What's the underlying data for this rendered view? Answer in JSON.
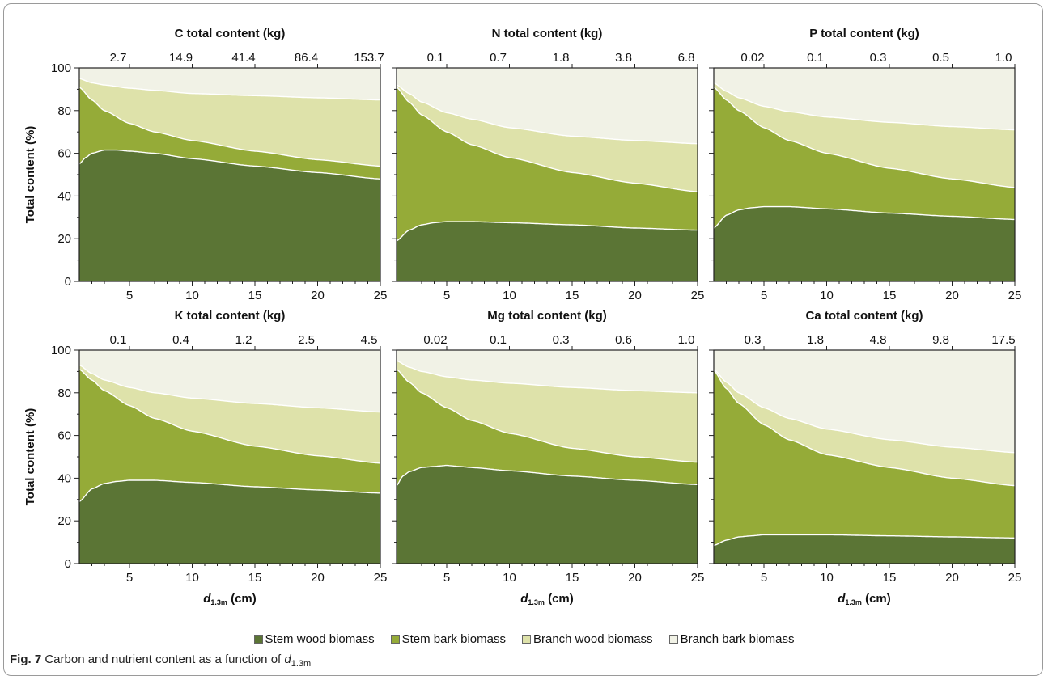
{
  "colors": {
    "stem_wood": "#5b7535",
    "stem_bark": "#95ab38",
    "branch_wood": "#dee2aa",
    "branch_bark": "#f1f2e6"
  },
  "y_axis_label": "Total content (%)",
  "x_axis_label_var": "d",
  "x_axis_label_sub": "1.3m",
  "x_axis_label_unit": " (cm)",
  "legend": {
    "stem_wood": "Stem wood biomass",
    "stem_bark": "Stem bark biomass",
    "branch_wood": "Branch wood biomass",
    "branch_bark": "Branch bark biomass"
  },
  "caption": {
    "label": "Fig. 7",
    "text": " Carbon and nutrient content as a function of ",
    "var": "d",
    "sub": "1.3m"
  },
  "chart_data": [
    {
      "type": "area",
      "title": "C total content (kg)",
      "xlabel": "d1.3m (cm)",
      "ylabel": "Total content (%)",
      "xlim": [
        1,
        25
      ],
      "ylim": [
        0,
        100
      ],
      "x_ticks": [
        5,
        10,
        15,
        20,
        25
      ],
      "y_ticks": [
        0,
        20,
        40,
        60,
        80,
        100
      ],
      "top_ticks": [
        "2.7",
        "14.9",
        "41.4",
        "86.4",
        "153.7"
      ],
      "stacking": "cumulative_boundaries",
      "series": [
        {
          "name": "Stem wood biomass",
          "x": [
            1,
            1.5,
            2,
            3,
            4,
            5,
            7,
            10,
            15,
            20,
            25
          ],
          "y": [
            55,
            58,
            60,
            61.5,
            61.5,
            61,
            60,
            57.5,
            54,
            51,
            48
          ]
        },
        {
          "name": "Stem bark biomass",
          "x": [
            1,
            2,
            3,
            5,
            7,
            10,
            15,
            20,
            25
          ],
          "y": [
            91,
            85,
            80,
            74,
            70,
            66,
            61,
            57,
            54
          ]
        },
        {
          "name": "Branch wood biomass",
          "x": [
            1,
            2,
            3,
            5,
            7,
            10,
            15,
            20,
            25
          ],
          "y": [
            95,
            93,
            92,
            90.5,
            89.5,
            88,
            87,
            86,
            85
          ]
        },
        {
          "name": "Branch bark biomass",
          "x": [
            1,
            25
          ],
          "y": [
            100,
            100
          ]
        }
      ]
    },
    {
      "type": "area",
      "title": "N total content (kg)",
      "xlabel": "d1.3m (cm)",
      "ylabel": "Total content (%)",
      "xlim": [
        1,
        25
      ],
      "ylim": [
        0,
        100
      ],
      "x_ticks": [
        5,
        10,
        15,
        20,
        25
      ],
      "y_ticks": [
        0,
        20,
        40,
        60,
        80,
        100
      ],
      "top_ticks": [
        "0.1",
        "0.7",
        "1.8",
        "3.8",
        "6.8"
      ],
      "stacking": "cumulative_boundaries",
      "series": [
        {
          "name": "Stem wood biomass",
          "x": [
            1,
            2,
            3,
            4,
            5,
            7,
            10,
            15,
            20,
            25
          ],
          "y": [
            19,
            24,
            26.5,
            27.5,
            28,
            28,
            27.5,
            26.5,
            25,
            24
          ]
        },
        {
          "name": "Stem bark biomass",
          "x": [
            1,
            2,
            3,
            5,
            7,
            10,
            15,
            20,
            25
          ],
          "y": [
            91,
            84,
            78,
            70,
            64,
            58,
            51,
            46,
            42
          ]
        },
        {
          "name": "Branch wood biomass",
          "x": [
            1,
            2,
            3,
            5,
            7,
            10,
            15,
            20,
            25
          ],
          "y": [
            92,
            88,
            84,
            79,
            76,
            72,
            68,
            66,
            64.5
          ]
        },
        {
          "name": "Branch bark biomass",
          "x": [
            1,
            25
          ],
          "y": [
            100,
            100
          ]
        }
      ]
    },
    {
      "type": "area",
      "title": "P total content (kg)",
      "xlabel": "d1.3m (cm)",
      "ylabel": "Total content (%)",
      "xlim": [
        1,
        25
      ],
      "ylim": [
        0,
        100
      ],
      "x_ticks": [
        5,
        10,
        15,
        20,
        25
      ],
      "y_ticks": [
        0,
        20,
        40,
        60,
        80,
        100
      ],
      "top_ticks": [
        "0.02",
        "0.1",
        "0.3",
        "0.5",
        "1.0"
      ],
      "stacking": "cumulative_boundaries",
      "series": [
        {
          "name": "Stem wood biomass",
          "x": [
            1,
            2,
            3,
            4,
            5,
            7,
            10,
            15,
            20,
            25
          ],
          "y": [
            25,
            31,
            33.5,
            34.5,
            35,
            35,
            34,
            32,
            30.5,
            29
          ]
        },
        {
          "name": "Stem bark biomass",
          "x": [
            1,
            2,
            3,
            5,
            7,
            10,
            15,
            20,
            25
          ],
          "y": [
            91,
            85,
            80,
            72,
            66,
            60,
            53,
            48,
            44
          ]
        },
        {
          "name": "Branch wood biomass",
          "x": [
            1,
            2,
            3,
            5,
            7,
            10,
            15,
            20,
            25
          ],
          "y": [
            93,
            89,
            86,
            82,
            79.5,
            77,
            74.5,
            72.5,
            71
          ]
        },
        {
          "name": "Branch bark biomass",
          "x": [
            1,
            25
          ],
          "y": [
            100,
            100
          ]
        }
      ]
    },
    {
      "type": "area",
      "title": "K total content (kg)",
      "xlabel": "d1.3m (cm)",
      "ylabel": "Total content (%)",
      "xlim": [
        1,
        25
      ],
      "ylim": [
        0,
        100
      ],
      "x_ticks": [
        5,
        10,
        15,
        20,
        25
      ],
      "y_ticks": [
        0,
        20,
        40,
        60,
        80,
        100
      ],
      "top_ticks": [
        "0.1",
        "0.4",
        "1.2",
        "2.5",
        "4.5"
      ],
      "stacking": "cumulative_boundaries",
      "series": [
        {
          "name": "Stem wood biomass",
          "x": [
            1,
            2,
            3,
            4,
            5,
            6,
            7,
            10,
            15,
            20,
            25
          ],
          "y": [
            29,
            35,
            37.5,
            38.5,
            39,
            39,
            39,
            38,
            36,
            34.5,
            33
          ]
        },
        {
          "name": "Stem bark biomass",
          "x": [
            1,
            2,
            3,
            5,
            7,
            10,
            15,
            20,
            25
          ],
          "y": [
            91,
            86,
            81,
            74,
            68,
            62,
            55,
            50.5,
            47
          ]
        },
        {
          "name": "Branch wood biomass",
          "x": [
            1,
            2,
            3,
            5,
            7,
            10,
            15,
            20,
            25
          ],
          "y": [
            93,
            89,
            86,
            82.5,
            80,
            77.5,
            75,
            73,
            71
          ]
        },
        {
          "name": "Branch bark biomass",
          "x": [
            1,
            25
          ],
          "y": [
            100,
            100
          ]
        }
      ]
    },
    {
      "type": "area",
      "title": "Mg total content (kg)",
      "xlabel": "d1.3m (cm)",
      "ylabel": "Total content (%)",
      "xlim": [
        1,
        25
      ],
      "ylim": [
        0,
        100
      ],
      "x_ticks": [
        5,
        10,
        15,
        20,
        25
      ],
      "y_ticks": [
        0,
        20,
        40,
        60,
        80,
        100
      ],
      "top_ticks": [
        "0.02",
        "0.1",
        "0.3",
        "0.6",
        "1.0"
      ],
      "stacking": "cumulative_boundaries",
      "series": [
        {
          "name": "Stem wood biomass",
          "x": [
            1,
            1.5,
            2,
            3,
            4,
            5,
            6,
            7,
            10,
            15,
            20,
            25
          ],
          "y": [
            36.5,
            41,
            43,
            45,
            45.5,
            46,
            45.5,
            45,
            43.5,
            41,
            39,
            37
          ]
        },
        {
          "name": "Stem bark biomass",
          "x": [
            1,
            2,
            3,
            5,
            7,
            10,
            15,
            20,
            25
          ],
          "y": [
            91,
            85,
            80,
            73,
            67,
            61,
            54,
            50,
            47.5
          ]
        },
        {
          "name": "Branch wood biomass",
          "x": [
            1,
            2,
            3,
            5,
            7,
            10,
            15,
            20,
            25
          ],
          "y": [
            95,
            92,
            90,
            87.5,
            86,
            84.5,
            82.5,
            81,
            80
          ]
        },
        {
          "name": "Branch bark biomass",
          "x": [
            1,
            25
          ],
          "y": [
            100,
            100
          ]
        }
      ]
    },
    {
      "type": "area",
      "title": "Ca total content (kg)",
      "xlabel": "d1.3m (cm)",
      "ylabel": "Total content (%)",
      "xlim": [
        1,
        25
      ],
      "ylim": [
        0,
        100
      ],
      "x_ticks": [
        5,
        10,
        15,
        20,
        25
      ],
      "y_ticks": [
        0,
        20,
        40,
        60,
        80,
        100
      ],
      "top_ticks": [
        "0.3",
        "1.8",
        "4.8",
        "9.8",
        "17.5"
      ],
      "stacking": "cumulative_boundaries",
      "series": [
        {
          "name": "Stem wood biomass",
          "x": [
            1,
            2,
            3,
            4,
            5,
            7,
            10,
            15,
            20,
            25
          ],
          "y": [
            8.5,
            11,
            12.5,
            13,
            13.5,
            13.5,
            13.5,
            13,
            12.5,
            12
          ]
        },
        {
          "name": "Stem bark biomass",
          "x": [
            1,
            2,
            3,
            5,
            7,
            10,
            15,
            20,
            25
          ],
          "y": [
            90.5,
            82,
            75,
            65,
            58,
            51,
            45,
            40,
            36.5
          ]
        },
        {
          "name": "Branch wood biomass",
          "x": [
            1,
            2,
            3,
            5,
            7,
            10,
            15,
            20,
            25
          ],
          "y": [
            91,
            85,
            80,
            73,
            68,
            63,
            58,
            54.5,
            52
          ]
        },
        {
          "name": "Branch bark biomass",
          "x": [
            1,
            25
          ],
          "y": [
            100,
            100
          ]
        }
      ]
    }
  ]
}
